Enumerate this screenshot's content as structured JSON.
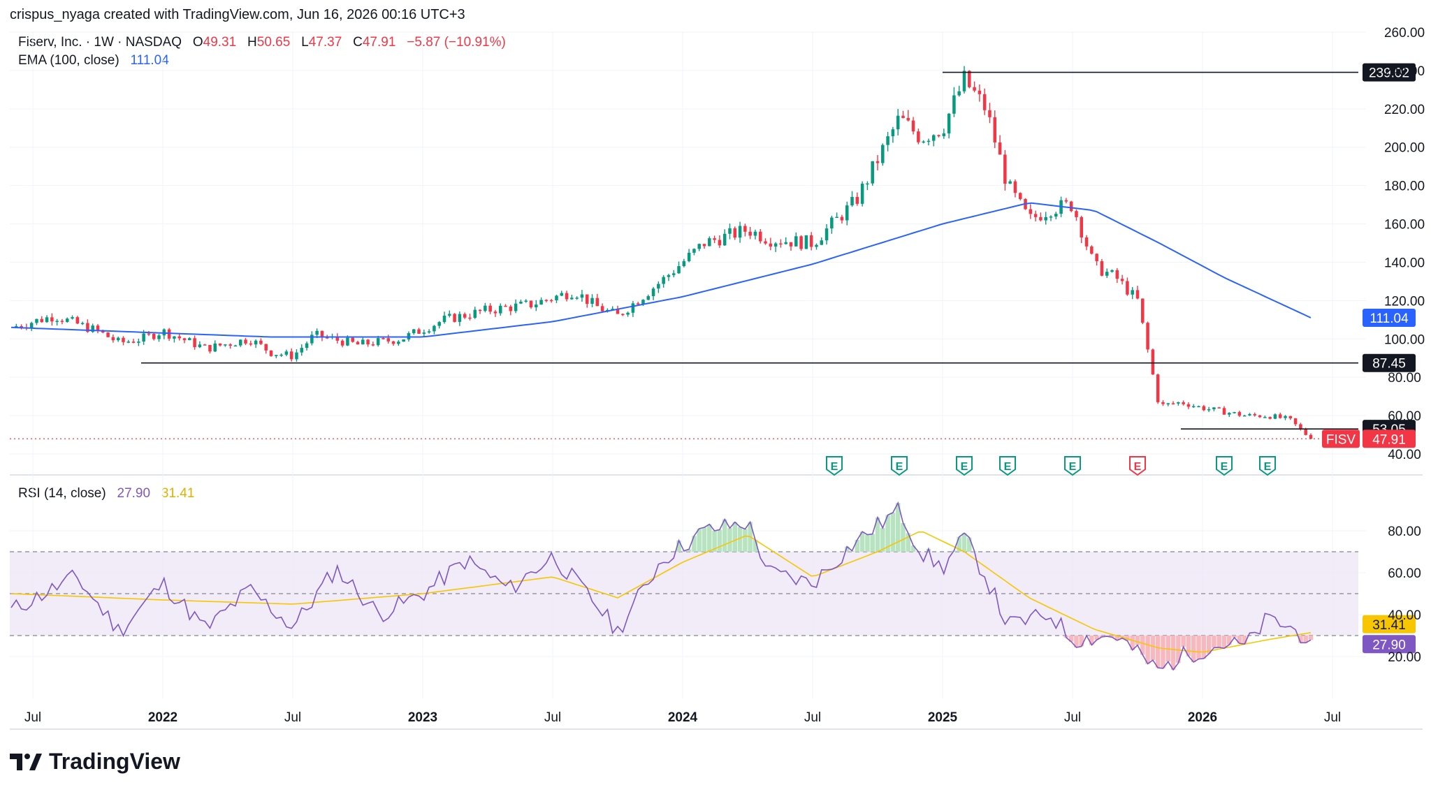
{
  "header": {
    "credit": "crispus_nyaga created with TradingView.com, Jun 16, 2026 00:16 UTC+3",
    "symbol_line": "Fiserv, Inc. · 1W · NASDAQ",
    "o_label": "O",
    "o_value": "49.31",
    "h_label": "H",
    "h_value": "50.65",
    "l_label": "L",
    "l_value": "47.37",
    "c_label": "C",
    "c_value": "47.91",
    "change": "−5.87 (−10.91%)",
    "ema_label": "EMA (100, close)",
    "ema_value": "111.04",
    "rsi_label": "RSI (14, close)",
    "rsi_value": "27.90",
    "rsi_ma_value": "31.41"
  },
  "branding": {
    "logo_text": "TradingView"
  },
  "colors": {
    "up": "#089981",
    "down": "#f23645",
    "ema": "#2962ff",
    "rsi": "#7e57c2",
    "rsi_ma": "#f7c600",
    "rsi_band": "#ede7f6"
  },
  "chart_data": [
    {
      "type": "candlestick",
      "title": "Fiserv, Inc. · 1W · NASDAQ",
      "ylim": [
        40,
        260
      ],
      "y_ticks": [
        "260.00",
        "240.00",
        "220.00",
        "200.00",
        "180.00",
        "160.00",
        "140.00",
        "120.00",
        "100.00",
        "80.00",
        "60.00",
        "40.00"
      ],
      "x_labels": [
        "Jul",
        "2022",
        "Jul",
        "2023",
        "Jul",
        "2024",
        "Jul",
        "2025",
        "Jul",
        "2026",
        "Jul"
      ],
      "series_points": [
        [
          "2021-06",
          106
        ],
        [
          "2021-08",
          112
        ],
        [
          "2021-10",
          104
        ],
        [
          "2021-11",
          98
        ],
        [
          "2021-12",
          100
        ],
        [
          "2022-01",
          104
        ],
        [
          "2022-03",
          95
        ],
        [
          "2022-05",
          100
        ],
        [
          "2022-06",
          93
        ],
        [
          "2022-07",
          91
        ],
        [
          "2022-08",
          102
        ],
        [
          "2022-10",
          97
        ],
        [
          "2022-12",
          100
        ],
        [
          "2023-02",
          110
        ],
        [
          "2023-04",
          115
        ],
        [
          "2023-06",
          118
        ],
        [
          "2023-08",
          125
        ],
        [
          "2023-09",
          117
        ],
        [
          "2023-10",
          112
        ],
        [
          "2023-12",
          130
        ],
        [
          "2024-02",
          150
        ],
        [
          "2024-04",
          157
        ],
        [
          "2024-05",
          152
        ],
        [
          "2024-07",
          150
        ],
        [
          "2024-09",
          172
        ],
        [
          "2024-11",
          215
        ],
        [
          "2024-12",
          205
        ],
        [
          "2025-01",
          210
        ],
        [
          "2025-02",
          235
        ],
        [
          "2025-03",
          220
        ],
        [
          "2025-04",
          180
        ],
        [
          "2025-05",
          162
        ],
        [
          "2025-06",
          168
        ],
        [
          "2025-07",
          170
        ],
        [
          "2025-08",
          138
        ],
        [
          "2025-09",
          132
        ],
        [
          "2025-10",
          120
        ],
        [
          "2025-11",
          65
        ],
        [
          "2025-12",
          67
        ],
        [
          "2026-01",
          64
        ],
        [
          "2026-03",
          60
        ],
        [
          "2026-04",
          60
        ],
        [
          "2026-05",
          58
        ],
        [
          "2026-06",
          47.91
        ]
      ],
      "ema_series": [
        [
          "2021-06",
          106
        ],
        [
          "2022-06",
          101
        ],
        [
          "2023-01",
          101
        ],
        [
          "2023-07",
          109
        ],
        [
          "2024-01",
          122
        ],
        [
          "2024-07",
          139
        ],
        [
          "2025-01",
          160
        ],
        [
          "2025-05",
          171
        ],
        [
          "2025-08",
          167
        ],
        [
          "2025-11",
          150
        ],
        [
          "2026-02",
          132
        ],
        [
          "2026-06",
          111.04
        ]
      ],
      "horizontal_lines": [
        {
          "label": "239.02",
          "from": "2025-01"
        },
        {
          "label": "87.45",
          "from": "2021-12"
        },
        {
          "label": "53.05",
          "from": "2025-12"
        }
      ],
      "price_labels": [
        {
          "label": "111.04",
          "color": "#2962ff"
        },
        {
          "symbol": "FISV",
          "label": "47.91",
          "color": "#f23645"
        }
      ],
      "earnings_markers": [
        "E",
        "E",
        "E",
        "E",
        "E",
        "E",
        "E",
        "E"
      ]
    },
    {
      "type": "line",
      "title": "RSI (14, close)",
      "ylim": [
        0,
        100
      ],
      "y_ticks": [
        "80.00",
        "60.00",
        "40.00",
        "20.00"
      ],
      "band": [
        30,
        70
      ],
      "midline": 50,
      "rsi_points": [
        [
          "2021-06",
          42
        ],
        [
          "2021-09",
          58
        ],
        [
          "2021-11",
          32
        ],
        [
          "2022-01",
          55
        ],
        [
          "2022-03",
          33
        ],
        [
          "2022-05",
          52
        ],
        [
          "2022-07",
          34
        ],
        [
          "2022-09",
          62
        ],
        [
          "2022-11",
          40
        ],
        [
          "2023-01",
          50
        ],
        [
          "2023-03",
          66
        ],
        [
          "2023-05",
          52
        ],
        [
          "2023-07",
          68
        ],
        [
          "2023-09",
          45
        ],
        [
          "2023-10",
          32
        ],
        [
          "2023-12",
          66
        ],
        [
          "2024-02",
          80
        ],
        [
          "2024-04",
          84
        ],
        [
          "2024-05",
          60
        ],
        [
          "2024-07",
          55
        ],
        [
          "2024-09",
          75
        ],
        [
          "2024-11",
          90
        ],
        [
          "2024-12",
          70
        ],
        [
          "2025-01",
          62
        ],
        [
          "2025-02",
          77
        ],
        [
          "2025-03",
          58
        ],
        [
          "2025-04",
          35
        ],
        [
          "2025-06",
          40
        ],
        [
          "2025-07",
          28
        ],
        [
          "2025-09",
          30
        ],
        [
          "2025-11",
          13
        ],
        [
          "2025-12",
          20
        ],
        [
          "2026-02",
          26
        ],
        [
          "2026-03",
          25
        ],
        [
          "2026-04",
          38
        ],
        [
          "2026-05",
          34
        ],
        [
          "2026-06",
          27.9
        ]
      ],
      "rsi_ma_points": [
        [
          "2021-06",
          50
        ],
        [
          "2022-01",
          47
        ],
        [
          "2022-07",
          45
        ],
        [
          "2023-01",
          50
        ],
        [
          "2023-07",
          58
        ],
        [
          "2023-10",
          48
        ],
        [
          "2024-01",
          65
        ],
        [
          "2024-04",
          78
        ],
        [
          "2024-07",
          58
        ],
        [
          "2024-10",
          70
        ],
        [
          "2024-12",
          80
        ],
        [
          "2025-02",
          70
        ],
        [
          "2025-05",
          48
        ],
        [
          "2025-08",
          33
        ],
        [
          "2025-11",
          24
        ],
        [
          "2026-01",
          22
        ],
        [
          "2026-04",
          28
        ],
        [
          "2026-06",
          31.41
        ]
      ],
      "value_labels": [
        {
          "label": "31.41",
          "color": "#f7c600"
        },
        {
          "label": "27.90",
          "color": "#7e57c2"
        }
      ]
    }
  ]
}
